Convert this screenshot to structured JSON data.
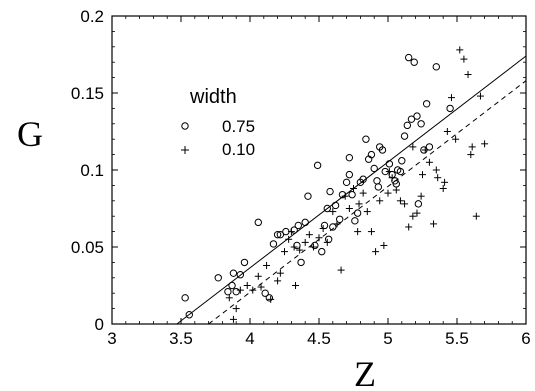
{
  "chart_data": {
    "type": "scatter",
    "xlabel": "Z",
    "ylabel": "G",
    "xlim": [
      3,
      6
    ],
    "ylim": [
      0,
      0.2
    ],
    "x_ticks": [
      "3",
      "3.5",
      "4",
      "4.5",
      "5",
      "5.5",
      "6"
    ],
    "y_ticks": [
      "0",
      "0.05",
      "0.1",
      "0.15",
      "0.2"
    ],
    "x_tick_values": [
      3,
      3.5,
      4,
      4.5,
      5,
      5.5,
      6
    ],
    "y_tick_values": [
      0,
      0.05,
      0.1,
      0.15,
      0.2
    ],
    "grid": false,
    "legend": {
      "title": "width",
      "position": "top-left"
    },
    "series": [
      {
        "name": "0.75",
        "marker": "circle",
        "fit": {
          "style": "solid",
          "x": [
            3.47,
            6.0
          ],
          "y": [
            0.0,
            0.174
          ]
        },
        "points": [
          [
            3.53,
            0.017
          ],
          [
            3.56,
            0.006
          ],
          [
            3.77,
            0.03
          ],
          [
            3.84,
            0.021
          ],
          [
            3.87,
            0.025
          ],
          [
            3.88,
            0.033
          ],
          [
            3.9,
            0.021
          ],
          [
            3.93,
            0.032
          ],
          [
            3.96,
            0.04
          ],
          [
            4.06,
            0.066
          ],
          [
            4.11,
            0.02
          ],
          [
            4.14,
            0.017
          ],
          [
            4.17,
            0.052
          ],
          [
            4.2,
            0.058
          ],
          [
            4.22,
            0.058
          ],
          [
            4.26,
            0.06
          ],
          [
            4.32,
            0.061
          ],
          [
            4.34,
            0.051
          ],
          [
            4.37,
            0.04
          ],
          [
            4.4,
            0.066
          ],
          [
            4.42,
            0.083
          ],
          [
            4.47,
            0.051
          ],
          [
            4.49,
            0.103
          ],
          [
            4.52,
            0.047
          ],
          [
            4.54,
            0.064
          ],
          [
            4.56,
            0.075
          ],
          [
            4.58,
            0.086
          ],
          [
            4.6,
            0.063
          ],
          [
            4.62,
            0.077
          ],
          [
            4.65,
            0.068
          ],
          [
            4.67,
            0.084
          ],
          [
            4.7,
            0.092
          ],
          [
            4.72,
            0.108
          ],
          [
            4.74,
            0.084
          ],
          [
            4.76,
            0.067
          ],
          [
            4.78,
            0.072
          ],
          [
            4.8,
            0.092
          ],
          [
            4.82,
            0.094
          ],
          [
            4.84,
            0.12
          ],
          [
            4.86,
            0.107
          ],
          [
            4.88,
            0.11
          ],
          [
            4.9,
            0.101
          ],
          [
            4.92,
            0.093
          ],
          [
            4.94,
            0.115
          ],
          [
            4.96,
            0.113
          ],
          [
            4.98,
            0.099
          ],
          [
            5.01,
            0.104
          ],
          [
            5.03,
            0.097
          ],
          [
            5.05,
            0.093
          ],
          [
            5.07,
            0.1
          ],
          [
            5.09,
            0.099
          ],
          [
            5.1,
            0.106
          ],
          [
            5.12,
            0.122
          ],
          [
            5.14,
            0.129
          ],
          [
            5.15,
            0.173
          ],
          [
            5.17,
            0.133
          ],
          [
            5.19,
            0.17
          ],
          [
            5.21,
            0.135
          ],
          [
            5.24,
            0.13
          ],
          [
            5.26,
            0.113
          ],
          [
            5.28,
            0.143
          ],
          [
            5.3,
            0.115
          ],
          [
            5.35,
            0.167
          ],
          [
            5.45,
            0.14
          ],
          [
            5.06,
            0.091
          ],
          [
            4.93,
            0.089
          ],
          [
            5.22,
            0.078
          ],
          [
            4.57,
            0.055
          ],
          [
            4.72,
            0.097
          ],
          [
            4.35,
            0.064
          ]
        ]
      },
      {
        "name": "0.10",
        "marker": "plus",
        "fit": {
          "style": "dashed",
          "x": [
            3.7,
            6.0
          ],
          "y": [
            0.0,
            0.158
          ]
        },
        "points": [
          [
            3.85,
            0.017
          ],
          [
            3.88,
            0.003
          ],
          [
            3.9,
            0.01
          ],
          [
            3.93,
            0.022
          ],
          [
            3.98,
            0.025
          ],
          [
            4.02,
            0.022
          ],
          [
            4.06,
            0.031
          ],
          [
            4.08,
            0.024
          ],
          [
            4.12,
            0.038
          ],
          [
            4.15,
            0.016
          ],
          [
            4.2,
            0.028
          ],
          [
            4.22,
            0.033
          ],
          [
            4.25,
            0.047
          ],
          [
            4.28,
            0.055
          ],
          [
            4.3,
            0.06
          ],
          [
            4.32,
            0.05
          ],
          [
            4.33,
            0.025
          ],
          [
            4.36,
            0.048
          ],
          [
            4.4,
            0.053
          ],
          [
            4.43,
            0.058
          ],
          [
            4.46,
            0.05
          ],
          [
            4.5,
            0.056
          ],
          [
            4.53,
            0.062
          ],
          [
            4.56,
            0.053
          ],
          [
            4.6,
            0.073
          ],
          [
            4.63,
            0.065
          ],
          [
            4.66,
            0.035
          ],
          [
            4.69,
            0.083
          ],
          [
            4.72,
            0.075
          ],
          [
            4.75,
            0.088
          ],
          [
            4.79,
            0.078
          ],
          [
            4.82,
            0.085
          ],
          [
            4.85,
            0.073
          ],
          [
            4.88,
            0.06
          ],
          [
            4.91,
            0.047
          ],
          [
            4.94,
            0.08
          ],
          [
            4.97,
            0.051
          ],
          [
            5.0,
            0.085
          ],
          [
            5.03,
            0.095
          ],
          [
            5.06,
            0.087
          ],
          [
            5.09,
            0.08
          ],
          [
            5.12,
            0.078
          ],
          [
            5.15,
            0.063
          ],
          [
            5.18,
            0.07
          ],
          [
            5.21,
            0.072
          ],
          [
            5.24,
            0.083
          ],
          [
            5.27,
            0.113
          ],
          [
            5.3,
            0.105
          ],
          [
            5.33,
            0.065
          ],
          [
            5.36,
            0.095
          ],
          [
            5.4,
            0.088
          ],
          [
            5.43,
            0.125
          ],
          [
            5.46,
            0.147
          ],
          [
            5.49,
            0.12
          ],
          [
            5.52,
            0.178
          ],
          [
            5.55,
            0.172
          ],
          [
            5.58,
            0.162
          ],
          [
            5.61,
            0.115
          ],
          [
            5.64,
            0.07
          ],
          [
            5.67,
            0.148
          ],
          [
            5.7,
            0.117
          ],
          [
            5.25,
            0.097
          ],
          [
            5.18,
            0.115
          ],
          [
            5.41,
            0.092
          ],
          [
            5.01,
            0.099
          ],
          [
            4.78,
            0.06
          ],
          [
            5.35,
            0.1
          ],
          [
            5.6,
            0.11
          ]
        ]
      }
    ]
  }
}
